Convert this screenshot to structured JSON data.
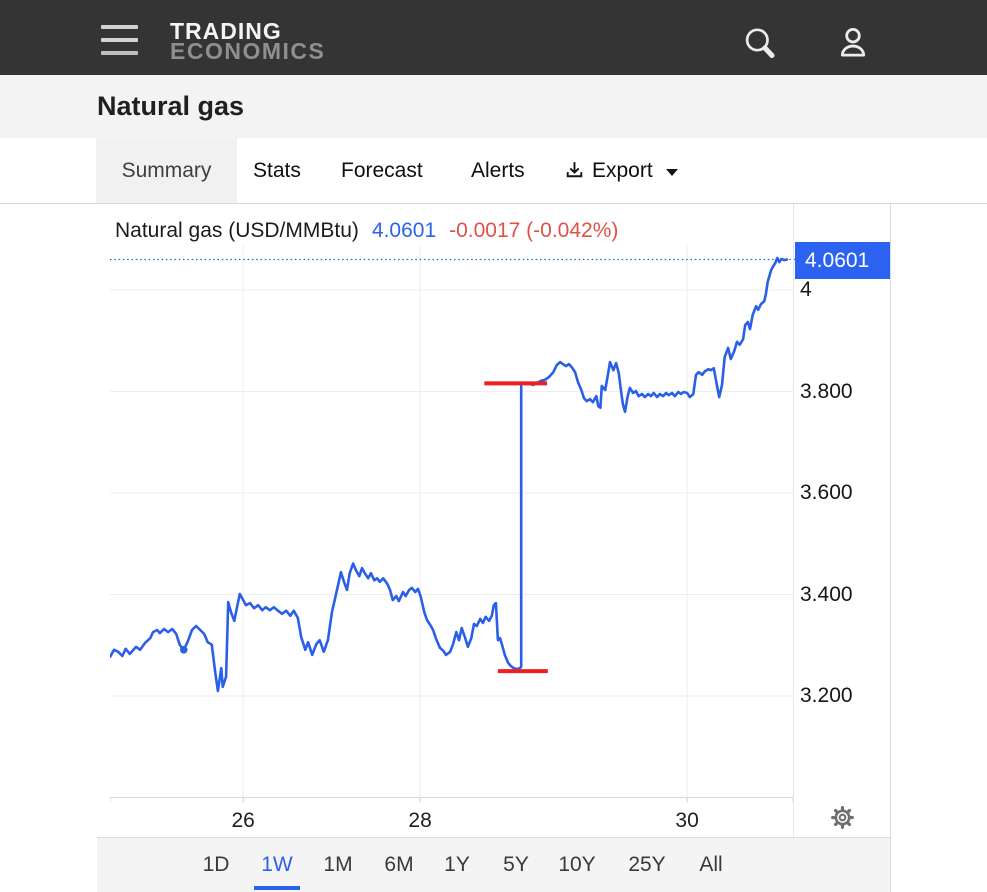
{
  "header": {
    "logo_line1": "TRADING",
    "logo_line2": "ECONOMICS"
  },
  "page": {
    "title": "Natural gas"
  },
  "tabs": {
    "items": [
      "Summary",
      "Stats",
      "Forecast",
      "Alerts"
    ],
    "active": "Summary",
    "export_label": "Export"
  },
  "timeframes": {
    "items": [
      "1D",
      "1W",
      "1M",
      "6M",
      "1Y",
      "5Y",
      "10Y",
      "25Y",
      "All"
    ],
    "active": "1W"
  },
  "colors": {
    "line_blue": "#2b5fe8",
    "price_tag_blue": "#2b62f0",
    "marker_red": "#ee1f1f",
    "change_red": "#e2504a",
    "active_blue": "#2a62ec",
    "grid": "#ededed",
    "axis": "#d9d9d9"
  },
  "chart_data": {
    "type": "line",
    "title": "Natural gas (USD/MMBtu)",
    "last_price": 4.0601,
    "last_price_label": "4.0601",
    "change": "-0.0017 (-0.042%)",
    "ylim": [
      3.0,
      4.089
    ],
    "grid": true,
    "yticks": [
      {
        "label": "4",
        "value": 4.0
      },
      {
        "label": "3.800",
        "value": 3.8
      },
      {
        "label": "3.600",
        "value": 3.6
      },
      {
        "label": "3.400",
        "value": 3.4
      },
      {
        "label": "3.200",
        "value": 3.2
      }
    ],
    "baseline_value": 3.0,
    "xticks": [
      {
        "label": "26",
        "f": 0.195
      },
      {
        "label": "28",
        "f": 0.454
      },
      {
        "label": "30",
        "f": 0.845
      }
    ],
    "open_markers": [
      {
        "price": 3.816,
        "f_start": 0.548,
        "f_end": 0.64
      },
      {
        "price": 3.249,
        "f_start": 0.568,
        "f_end": 0.641
      }
    ],
    "gap_dot": {
      "f": 0.108,
      "price": 3.291
    },
    "series": [
      {
        "name": "Natural gas 1W",
        "points": [
          [
            0.0,
            3.277
          ],
          [
            0.006,
            3.291
          ],
          [
            0.012,
            3.287
          ],
          [
            0.018,
            3.279
          ],
          [
            0.023,
            3.293
          ],
          [
            0.029,
            3.283
          ],
          [
            0.038,
            3.297
          ],
          [
            0.044,
            3.291
          ],
          [
            0.051,
            3.304
          ],
          [
            0.059,
            3.314
          ],
          [
            0.063,
            3.326
          ],
          [
            0.069,
            3.33
          ],
          [
            0.073,
            3.324
          ],
          [
            0.079,
            3.332
          ],
          [
            0.085,
            3.326
          ],
          [
            0.091,
            3.332
          ],
          [
            0.097,
            3.322
          ],
          [
            0.102,
            3.301
          ],
          [
            0.108,
            3.291
          ],
          [
            0.114,
            3.308
          ],
          [
            0.12,
            3.33
          ],
          [
            0.126,
            3.338
          ],
          [
            0.132,
            3.33
          ],
          [
            0.138,
            3.322
          ],
          [
            0.143,
            3.306
          ],
          [
            0.149,
            3.301
          ],
          [
            0.154,
            3.247
          ],
          [
            0.158,
            3.21
          ],
          [
            0.163,
            3.255
          ],
          [
            0.165,
            3.218
          ],
          [
            0.17,
            3.238
          ],
          [
            0.173,
            3.385
          ],
          [
            0.177,
            3.366
          ],
          [
            0.182,
            3.348
          ],
          [
            0.186,
            3.375
          ],
          [
            0.19,
            3.401
          ],
          [
            0.195,
            3.389
          ],
          [
            0.199,
            3.379
          ],
          [
            0.205,
            3.383
          ],
          [
            0.211,
            3.373
          ],
          [
            0.217,
            3.379
          ],
          [
            0.223,
            3.369
          ],
          [
            0.228,
            3.375
          ],
          [
            0.234,
            3.369
          ],
          [
            0.24,
            3.375
          ],
          [
            0.246,
            3.368
          ],
          [
            0.252,
            3.362
          ],
          [
            0.258,
            3.368
          ],
          [
            0.264,
            3.358
          ],
          [
            0.269,
            3.368
          ],
          [
            0.275,
            3.354
          ],
          [
            0.28,
            3.316
          ],
          [
            0.286,
            3.291
          ],
          [
            0.29,
            3.306
          ],
          [
            0.296,
            3.281
          ],
          [
            0.302,
            3.302
          ],
          [
            0.307,
            3.31
          ],
          [
            0.313,
            3.287
          ],
          [
            0.319,
            3.31
          ],
          [
            0.325,
            3.366
          ],
          [
            0.329,
            3.389
          ],
          [
            0.334,
            3.419
          ],
          [
            0.338,
            3.444
          ],
          [
            0.343,
            3.423
          ],
          [
            0.347,
            3.409
          ],
          [
            0.351,
            3.442
          ],
          [
            0.356,
            3.461
          ],
          [
            0.36,
            3.448
          ],
          [
            0.365,
            3.436
          ],
          [
            0.369,
            3.452
          ],
          [
            0.373,
            3.442
          ],
          [
            0.378,
            3.432
          ],
          [
            0.382,
            3.442
          ],
          [
            0.387,
            3.428
          ],
          [
            0.391,
            3.432
          ],
          [
            0.395,
            3.425
          ],
          [
            0.4,
            3.432
          ],
          [
            0.406,
            3.421
          ],
          [
            0.41,
            3.409
          ],
          [
            0.414,
            3.389
          ],
          [
            0.419,
            3.397
          ],
          [
            0.423,
            3.387
          ],
          [
            0.429,
            3.405
          ],
          [
            0.433,
            3.397
          ],
          [
            0.438,
            3.409
          ],
          [
            0.442,
            3.413
          ],
          [
            0.447,
            3.405
          ],
          [
            0.451,
            3.411
          ],
          [
            0.455,
            3.395
          ],
          [
            0.46,
            3.366
          ],
          [
            0.464,
            3.35
          ],
          [
            0.469,
            3.34
          ],
          [
            0.473,
            3.33
          ],
          [
            0.477,
            3.314
          ],
          [
            0.483,
            3.295
          ],
          [
            0.488,
            3.289
          ],
          [
            0.492,
            3.281
          ],
          [
            0.498,
            3.287
          ],
          [
            0.502,
            3.301
          ],
          [
            0.507,
            3.326
          ],
          [
            0.511,
            3.31
          ],
          [
            0.515,
            3.334
          ],
          [
            0.52,
            3.314
          ],
          [
            0.524,
            3.297
          ],
          [
            0.529,
            3.314
          ],
          [
            0.533,
            3.342
          ],
          [
            0.537,
            3.338
          ],
          [
            0.542,
            3.352
          ],
          [
            0.546,
            3.344
          ],
          [
            0.55,
            3.356
          ],
          [
            0.555,
            3.348
          ],
          [
            0.559,
            3.358
          ],
          [
            0.562,
            3.379
          ],
          [
            0.565,
            3.383
          ],
          [
            0.568,
            3.31
          ],
          [
            0.571,
            3.314
          ],
          [
            0.574,
            3.301
          ],
          [
            0.578,
            3.281
          ],
          [
            0.583,
            3.265
          ],
          [
            0.587,
            3.259
          ],
          [
            0.591,
            3.255
          ],
          [
            0.596,
            3.253
          ],
          [
            0.6,
            3.255
          ],
          [
            0.602,
            3.257
          ],
          [
            0.602,
            3.817
          ],
          [
            0.608,
            3.815
          ],
          [
            0.613,
            3.817
          ],
          [
            0.619,
            3.813
          ],
          [
            0.625,
            3.817
          ],
          [
            0.631,
            3.821
          ],
          [
            0.637,
            3.823
          ],
          [
            0.643,
            3.829
          ],
          [
            0.649,
            3.838
          ],
          [
            0.654,
            3.852
          ],
          [
            0.659,
            3.858
          ],
          [
            0.663,
            3.854
          ],
          [
            0.668,
            3.85
          ],
          [
            0.672,
            3.854
          ],
          [
            0.676,
            3.848
          ],
          [
            0.681,
            3.838
          ],
          [
            0.685,
            3.819
          ],
          [
            0.69,
            3.803
          ],
          [
            0.694,
            3.787
          ],
          [
            0.698,
            3.781
          ],
          [
            0.703,
            3.785
          ],
          [
            0.707,
            3.779
          ],
          [
            0.712,
            3.791
          ],
          [
            0.715,
            3.771
          ],
          [
            0.718,
            3.768
          ],
          [
            0.72,
            3.811
          ],
          [
            0.725,
            3.803
          ],
          [
            0.729,
            3.833
          ],
          [
            0.732,
            3.858
          ],
          [
            0.737,
            3.842
          ],
          [
            0.741,
            3.856
          ],
          [
            0.745,
            3.836
          ],
          [
            0.748,
            3.803
          ],
          [
            0.751,
            3.775
          ],
          [
            0.754,
            3.76
          ],
          [
            0.758,
            3.791
          ],
          [
            0.761,
            3.807
          ],
          [
            0.766,
            3.797
          ],
          [
            0.77,
            3.801
          ],
          [
            0.774,
            3.791
          ],
          [
            0.779,
            3.795
          ],
          [
            0.783,
            3.789
          ],
          [
            0.788,
            3.795
          ],
          [
            0.792,
            3.791
          ],
          [
            0.796,
            3.797
          ],
          [
            0.801,
            3.789
          ],
          [
            0.805,
            3.795
          ],
          [
            0.81,
            3.791
          ],
          [
            0.814,
            3.797
          ],
          [
            0.818,
            3.793
          ],
          [
            0.823,
            3.797
          ],
          [
            0.827,
            3.791
          ],
          [
            0.832,
            3.799
          ],
          [
            0.836,
            3.795
          ],
          [
            0.84,
            3.799
          ],
          [
            0.845,
            3.797
          ],
          [
            0.849,
            3.789
          ],
          [
            0.854,
            3.795
          ],
          [
            0.858,
            3.833
          ],
          [
            0.862,
            3.838
          ],
          [
            0.867,
            3.833
          ],
          [
            0.871,
            3.84
          ],
          [
            0.876,
            3.844
          ],
          [
            0.88,
            3.842
          ],
          [
            0.884,
            3.846
          ],
          [
            0.889,
            3.809
          ],
          [
            0.892,
            3.789
          ],
          [
            0.896,
            3.813
          ],
          [
            0.9,
            3.868
          ],
          [
            0.905,
            3.886
          ],
          [
            0.909,
            3.864
          ],
          [
            0.914,
            3.88
          ],
          [
            0.918,
            3.898
          ],
          [
            0.922,
            3.892
          ],
          [
            0.927,
            3.903
          ],
          [
            0.93,
            3.931
          ],
          [
            0.934,
            3.937
          ],
          [
            0.937,
            3.923
          ],
          [
            0.941,
            3.951
          ],
          [
            0.946,
            3.968
          ],
          [
            0.949,
            3.961
          ],
          [
            0.953,
            3.972
          ],
          [
            0.958,
            3.978
          ],
          [
            0.96,
            3.99
          ],
          [
            0.963,
            4.016
          ],
          [
            0.968,
            4.039
          ],
          [
            0.971,
            4.047
          ],
          [
            0.974,
            4.053
          ],
          [
            0.977,
            4.063
          ],
          [
            0.98,
            4.055
          ],
          [
            0.983,
            4.061
          ],
          [
            0.987,
            4.059
          ],
          [
            0.991,
            4.0601
          ]
        ]
      }
    ]
  }
}
